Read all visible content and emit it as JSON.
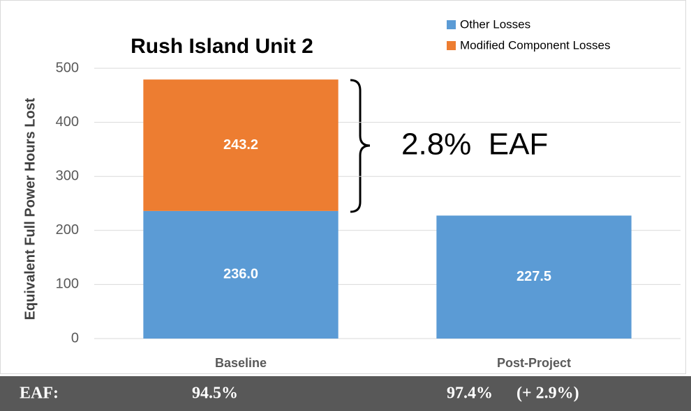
{
  "chart_data": {
    "type": "stacked_bar",
    "title": "Rush Island Unit 2",
    "y_label": "Equivalent Full Power Hours Lost",
    "categories": [
      "Baseline",
      "Post-Project"
    ],
    "series": [
      {
        "name": "Other Losses",
        "color": "#5b9bd5",
        "values": [
          236.0,
          227.5
        ],
        "value_labels": [
          "236.0",
          "227.5"
        ]
      },
      {
        "name": "Modified Component Losses",
        "color": "#ed7d31",
        "values": [
          243.2,
          null
        ],
        "value_labels": [
          "243.2",
          null
        ]
      }
    ],
    "ylim": [
      0,
      500
    ],
    "yticks": [
      0,
      100,
      200,
      300,
      400,
      500
    ],
    "grid": true,
    "legend": "top-right",
    "annotation": "2.8%  EAF",
    "footer": {
      "label": "EAF:",
      "values": [
        "94.5%",
        "97.4%",
        "(+ 2.9%)"
      ]
    }
  }
}
